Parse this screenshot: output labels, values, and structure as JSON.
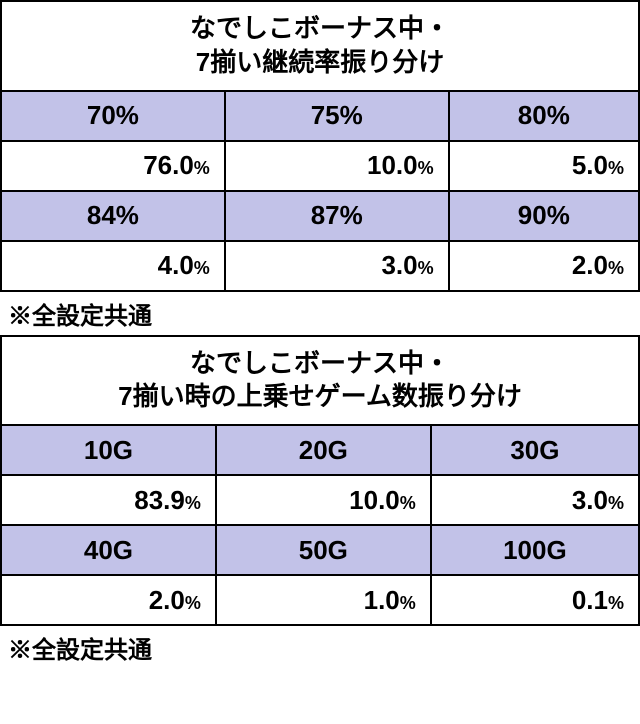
{
  "table1": {
    "title_line1": "なでしこボーナス中・",
    "title_line2": "7揃い継続率振り分け",
    "headers1": [
      "70%",
      "75%",
      "80%"
    ],
    "values1": [
      {
        "main": "76.0",
        "pct": "%"
      },
      {
        "main": "10.0",
        "pct": "%"
      },
      {
        "main": "5.0",
        "pct": "%"
      }
    ],
    "headers2": [
      "84%",
      "87%",
      "90%"
    ],
    "values2": [
      {
        "main": "4.0",
        "pct": "%"
      },
      {
        "main": "3.0",
        "pct": "%"
      },
      {
        "main": "2.0",
        "pct": "%"
      }
    ],
    "note": "※全設定共通"
  },
  "table2": {
    "title_line1": "なでしこボーナス中・",
    "title_line2": "7揃い時の上乗せゲーム数振り分け",
    "headers1": [
      "10G",
      "20G",
      "30G"
    ],
    "values1": [
      {
        "main": "83.9",
        "pct": "%"
      },
      {
        "main": "10.0",
        "pct": "%"
      },
      {
        "main": "3.0",
        "pct": "%"
      }
    ],
    "headers2": [
      "40G",
      "50G",
      "100G"
    ],
    "values2": [
      {
        "main": "2.0",
        "pct": "%"
      },
      {
        "main": "1.0",
        "pct": "%"
      },
      {
        "main": "0.1",
        "pct": "%"
      }
    ],
    "note": "※全設定共通"
  },
  "colors": {
    "header_bg": "#c2c2e8",
    "value_bg": "#ffffff",
    "border": "#000000",
    "text": "#000000"
  }
}
